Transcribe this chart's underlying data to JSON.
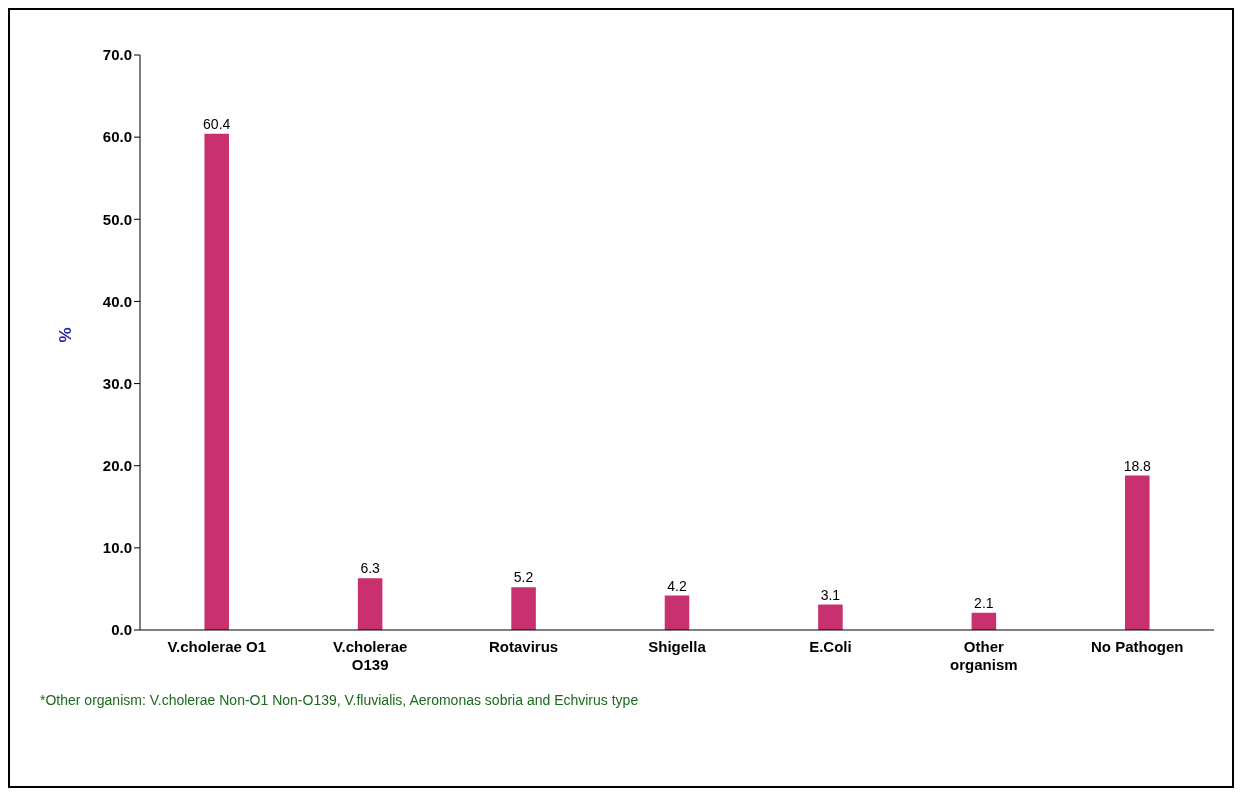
{
  "chart_data": {
    "type": "bar",
    "ylabel": "%",
    "categories": [
      "V.cholerae O1",
      "V.cholerae O139",
      "Rotavirus",
      "Shigella",
      "E.Coli",
      "Other organism",
      "No  Pathogen"
    ],
    "values": [
      60.4,
      6.3,
      5.2,
      4.2,
      3.1,
      2.1,
      18.8
    ],
    "color": "#c8306f",
    "ylim": [
      0,
      70
    ],
    "yticks": [
      {
        "value": 0,
        "label": "0.0"
      },
      {
        "value": 10,
        "label": "10.0"
      },
      {
        "value": 20,
        "label": "20.0"
      },
      {
        "value": 30,
        "label": "30.0"
      },
      {
        "value": 40,
        "label": "40.0"
      },
      {
        "value": 50,
        "label": "50.0"
      },
      {
        "value": 60,
        "label": "60.0"
      },
      {
        "value": 70,
        "label": "70.0"
      }
    ],
    "data_labels": true,
    "grid": false,
    "legend": false,
    "annotations": [
      "*Other organism: V.cholerae Non-O1 Non-O139, V.fluvialis, Aeromonas sobria and Echvirus type"
    ]
  }
}
